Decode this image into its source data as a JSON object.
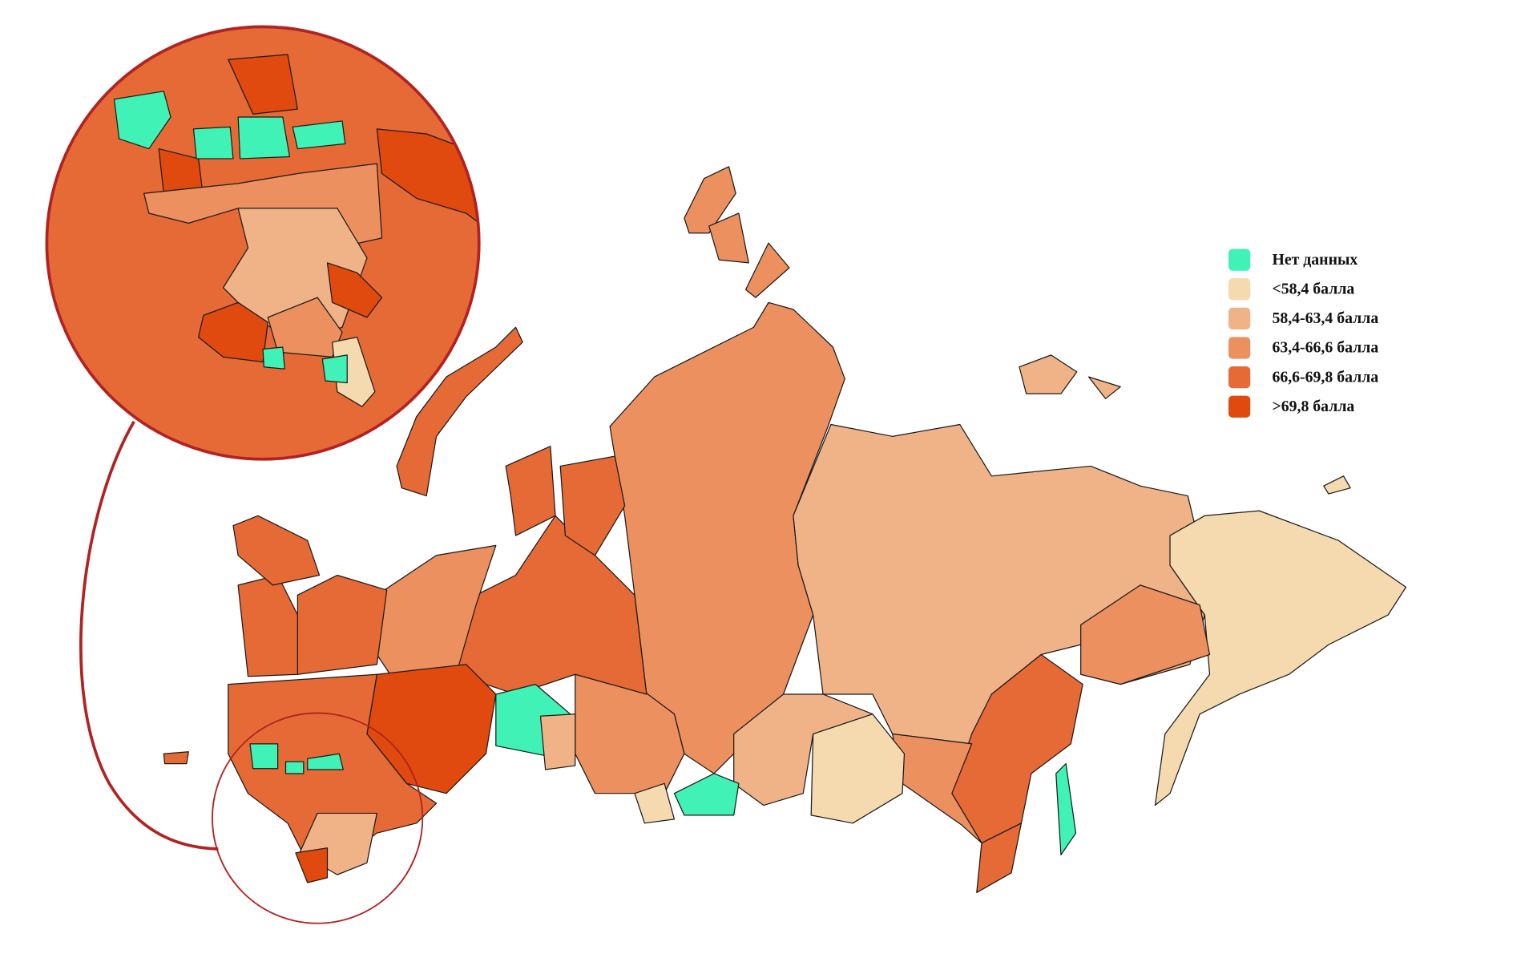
{
  "legend": {
    "items": [
      {
        "label": "Нет данных",
        "color": "#40f2b6"
      },
      {
        "label": "<58,4 балла",
        "color": "#f5dab0"
      },
      {
        "label": "58,4-63,4 балла",
        "color": "#f0b388"
      },
      {
        "label": "63,4-66,6 балла",
        "color": "#ec9060"
      },
      {
        "label": "66,6-69,8 балла",
        "color": "#e66a35"
      },
      {
        "label": ">69,8 балла",
        "color": "#e04a0e"
      }
    ]
  }
}
